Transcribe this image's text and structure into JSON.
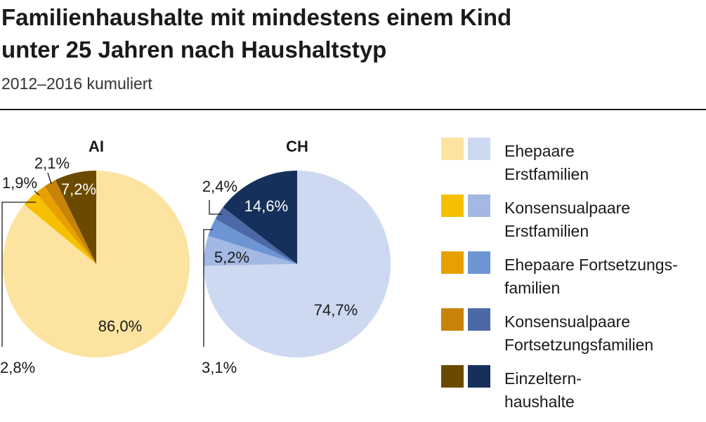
{
  "title_lines": [
    "Familienhaushalte mit mindestens einem Kind",
    "unter 25 Jahren nach Haushaltstyp"
  ],
  "subtitle": "2012–2016 kumuliert",
  "legend": [
    {
      "line1": "Ehepaare",
      "line2": "Erstfamilien",
      "color_ai": "#fde3a0",
      "color_ch": "#cdd9f1"
    },
    {
      "line1": "Konsensualpaare",
      "line2": "Erstfamilien",
      "color_ai": "#f6c001",
      "color_ch": "#a3b8e2"
    },
    {
      "line1": "Ehepaare Fortsetzungs-",
      "line2": "familien",
      "color_ai": "#e7a000",
      "color_ch": "#6d95d3"
    },
    {
      "line1": "Konsensualpaare",
      "line2": "Fortsetzungsfamilien",
      "color_ai": "#c8830a",
      "color_ch": "#4a69a6"
    },
    {
      "line1": "Einzeltern-",
      "line2": "haushalte",
      "color_ai": "#6b4a00",
      "color_ch": "#15305a"
    }
  ],
  "chart_data": [
    {
      "type": "pie",
      "title": "AI",
      "categories": [
        "Ehepaare Erstfamilien",
        "Konsensualpaare Erstfamilien",
        "Ehepaare Fortsetzungsfamilien",
        "Konsensualpaare Fortsetzungsfamilien",
        "Einzelternhaushalte"
      ],
      "values": [
        86.0,
        2.8,
        1.9,
        2.1,
        7.2
      ],
      "labels": [
        "86,0%",
        "2,8%",
        "1,9%",
        "2,1%",
        "7,2%"
      ],
      "colors": [
        "#fde3a0",
        "#f6c001",
        "#e7a000",
        "#c8830a",
        "#6b4a00"
      ],
      "start": "12 o'clock",
      "direction": "clockwise"
    },
    {
      "type": "pie",
      "title": "CH",
      "categories": [
        "Ehepaare Erstfamilien",
        "Konsensualpaare Erstfamilien",
        "Ehepaare Fortsetzungsfamilien",
        "Konsensualpaare Fortsetzungsfamilien",
        "Einzelternhaushalte"
      ],
      "values": [
        74.7,
        5.2,
        3.1,
        2.4,
        14.6
      ],
      "labels": [
        "74,7%",
        "5,2%",
        "3,1%",
        "2,4%",
        "14,6%"
      ],
      "colors": [
        "#cdd9f1",
        "#a3b8e2",
        "#6d95d3",
        "#4a69a6",
        "#15305a"
      ],
      "start": "12 o'clock",
      "direction": "clockwise"
    }
  ]
}
